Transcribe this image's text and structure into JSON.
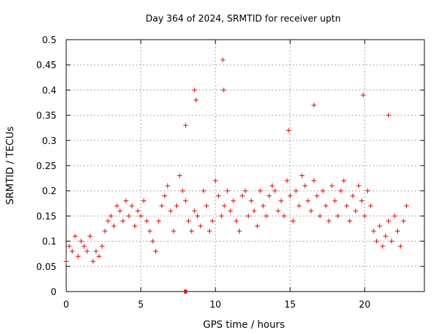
{
  "chart_data": {
    "type": "scatter",
    "title": "Day 364 of 2024, SRMTID for receiver uptn",
    "xlabel": "GPS time / hours",
    "ylabel": "SRMTID / TECUs",
    "xlim": [
      0,
      24
    ],
    "ylim": [
      0,
      0.5
    ],
    "xticks": [
      0,
      5,
      10,
      15,
      20
    ],
    "yticks": [
      0,
      0.05,
      0.1,
      0.15,
      0.2,
      0.25,
      0.3,
      0.35,
      0.4,
      0.45,
      0.5
    ],
    "ytick_labels": [
      "0",
      "0.05",
      "0.1",
      "0.15",
      "0.2",
      "0.25",
      "0.3",
      "0.35",
      "0.4",
      "0.45",
      "0.5"
    ],
    "grid": true,
    "marker": "+",
    "series_color": "#e00000",
    "series": [
      {
        "name": "SRMTID",
        "x": [
          0.0,
          0.2,
          0.4,
          0.6,
          0.8,
          1.0,
          1.2,
          1.4,
          1.6,
          1.8,
          2.0,
          2.2,
          2.4,
          2.6,
          2.8,
          3.0,
          3.2,
          3.4,
          3.6,
          3.8,
          4.0,
          4.2,
          4.4,
          4.6,
          4.8,
          5.0,
          5.2,
          5.4,
          5.6,
          5.8,
          6.0,
          6.2,
          6.4,
          6.6,
          6.8,
          7.0,
          7.2,
          7.4,
          7.6,
          7.8,
          8.0,
          8.2,
          8.4,
          8.6,
          8.8,
          9.0,
          9.2,
          9.4,
          9.6,
          9.8,
          10.0,
          10.2,
          10.4,
          10.6,
          10.8,
          11.0,
          11.2,
          11.4,
          11.6,
          11.8,
          12.0,
          12.2,
          12.4,
          12.6,
          12.8,
          13.0,
          13.2,
          13.4,
          13.6,
          13.8,
          14.0,
          14.2,
          14.4,
          14.6,
          14.8,
          15.0,
          15.2,
          15.4,
          15.6,
          15.8,
          16.0,
          16.2,
          16.4,
          16.6,
          16.8,
          17.0,
          17.2,
          17.4,
          17.6,
          17.8,
          18.0,
          18.2,
          18.4,
          18.6,
          18.8,
          19.0,
          19.2,
          19.4,
          19.6,
          19.8,
          20.0,
          20.2,
          20.4,
          20.6,
          20.8,
          21.0,
          21.2,
          21.4,
          21.6,
          21.8,
          22.0,
          22.2,
          22.4,
          22.6,
          22.8,
          8.6,
          8.7,
          10.5,
          10.55,
          8.0,
          19.9,
          21.6,
          16.6,
          14.9
        ],
        "y": [
          0.06,
          0.09,
          0.08,
          0.11,
          0.07,
          0.1,
          0.09,
          0.08,
          0.11,
          0.06,
          0.08,
          0.07,
          0.09,
          0.12,
          0.14,
          0.15,
          0.13,
          0.17,
          0.16,
          0.14,
          0.18,
          0.15,
          0.17,
          0.13,
          0.16,
          0.15,
          0.18,
          0.14,
          0.12,
          0.1,
          0.08,
          0.14,
          0.17,
          0.19,
          0.21,
          0.16,
          0.12,
          0.17,
          0.23,
          0.2,
          0.18,
          0.14,
          0.12,
          0.16,
          0.15,
          0.13,
          0.2,
          0.17,
          0.12,
          0.14,
          0.22,
          0.19,
          0.15,
          0.17,
          0.2,
          0.16,
          0.18,
          0.14,
          0.12,
          0.19,
          0.2,
          0.15,
          0.18,
          0.16,
          0.13,
          0.2,
          0.17,
          0.15,
          0.19,
          0.21,
          0.2,
          0.16,
          0.18,
          0.15,
          0.22,
          0.19,
          0.14,
          0.2,
          0.17,
          0.23,
          0.21,
          0.18,
          0.16,
          0.22,
          0.19,
          0.15,
          0.2,
          0.17,
          0.14,
          0.21,
          0.18,
          0.15,
          0.2,
          0.22,
          0.17,
          0.14,
          0.19,
          0.16,
          0.21,
          0.18,
          0.15,
          0.2,
          0.17,
          0.12,
          0.1,
          0.13,
          0.09,
          0.11,
          0.14,
          0.1,
          0.15,
          0.12,
          0.09,
          0.14,
          0.17,
          0.4,
          0.38,
          0.46,
          0.4,
          0.33,
          0.39,
          0.35,
          0.37,
          0.32
        ]
      }
    ],
    "annotations": [
      {
        "x": 8.0,
        "y": 0.0,
        "marker": "square"
      }
    ]
  }
}
